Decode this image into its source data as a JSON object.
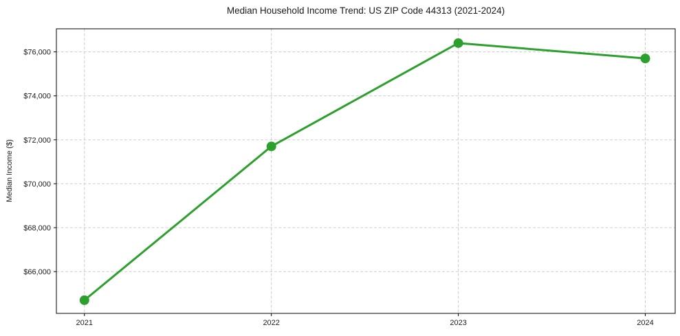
{
  "chart_data": {
    "type": "line",
    "title": "Median Household Income Trend: US ZIP Code 44313 (2021-2024)",
    "xlabel": "",
    "ylabel": "Median Income ($)",
    "x": [
      2021,
      2022,
      2023,
      2024
    ],
    "x_tick_labels": [
      "2021",
      "2022",
      "2023",
      "2024"
    ],
    "series": [
      {
        "name": "median-income-trend",
        "values": [
          64700,
          71700,
          76400,
          75700
        ],
        "color": "#2ca02c",
        "marker": "circle",
        "marker_radius": 7,
        "line_width": 3
      }
    ],
    "xlim": [
      2020.85,
      2024.16
    ],
    "ylim": [
      64100,
      77050
    ],
    "yticks": [
      66000,
      68000,
      70000,
      72000,
      74000,
      76000
    ],
    "y_tick_labels": [
      "$66,000",
      "$68,000",
      "$70,000",
      "$72,000",
      "$74,000",
      "$76,000"
    ],
    "grid": true,
    "grid_style": "dashed",
    "legend_position": "none"
  },
  "colors": {
    "line": "#2ca02c",
    "grid": "#cccccc",
    "axis": "#000000",
    "text": "#1a1a1a",
    "background": "#ffffff"
  }
}
